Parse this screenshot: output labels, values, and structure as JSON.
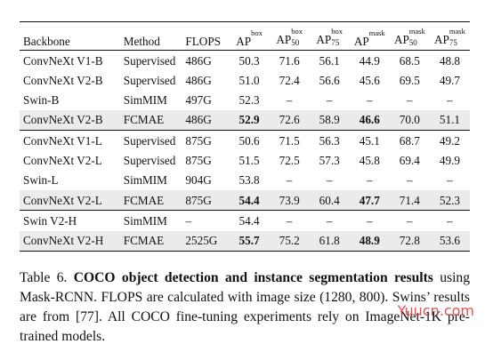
{
  "table": {
    "headers": {
      "backbone": "Backbone",
      "method": "Method",
      "flops": "FLOPS",
      "ap_box": {
        "base": "AP",
        "sup": "box",
        "sub": ""
      },
      "ap_box_50": {
        "base": "AP",
        "sup": "box",
        "sub": "50"
      },
      "ap_box_75": {
        "base": "AP",
        "sup": "box",
        "sub": "75"
      },
      "ap_mask": {
        "base": "AP",
        "sup": "mask",
        "sub": ""
      },
      "ap_mask_50": {
        "base": "AP",
        "sup": "mask",
        "sub": "50"
      },
      "ap_mask_75": {
        "base": "AP",
        "sup": "mask",
        "sub": "75"
      }
    },
    "rows": [
      {
        "backbone": "ConvNeXt V1-B",
        "method": "Supervised",
        "flops": "486G",
        "ap_box": "50.3",
        "ap_box_50": "71.6",
        "ap_box_75": "56.1",
        "ap_mask": "44.9",
        "ap_mask_50": "68.5",
        "ap_mask_75": "48.8"
      },
      {
        "backbone": "ConvNeXt V2-B",
        "method": "Supervised",
        "flops": "486G",
        "ap_box": "51.0",
        "ap_box_50": "72.4",
        "ap_box_75": "56.6",
        "ap_mask": "45.6",
        "ap_mask_50": "69.5",
        "ap_mask_75": "49.7"
      },
      {
        "backbone": "Swin-B",
        "method": "SimMIM",
        "flops": "497G",
        "ap_box": "52.3",
        "ap_box_50": "–",
        "ap_box_75": "–",
        "ap_mask": "–",
        "ap_mask_50": "–",
        "ap_mask_75": "–"
      },
      {
        "backbone": "ConvNeXt V2-B",
        "method": "FCMAE",
        "flops": "486G",
        "ap_box": "52.9",
        "ap_box_50": "72.6",
        "ap_box_75": "58.9",
        "ap_mask": "46.6",
        "ap_mask_50": "70.0",
        "ap_mask_75": "51.1"
      },
      {
        "backbone": "ConvNeXt V1-L",
        "method": "Supervised",
        "flops": "875G",
        "ap_box": "50.6",
        "ap_box_50": "71.5",
        "ap_box_75": "56.3",
        "ap_mask": "45.1",
        "ap_mask_50": "68.7",
        "ap_mask_75": "49.2"
      },
      {
        "backbone": "ConvNeXt V2-L",
        "method": "Supervised",
        "flops": "875G",
        "ap_box": "51.5",
        "ap_box_50": "72.5",
        "ap_box_75": "57.3",
        "ap_mask": "45.8",
        "ap_mask_50": "69.4",
        "ap_mask_75": "49.9"
      },
      {
        "backbone": "Swin-L",
        "method": "SimMIM",
        "flops": "904G",
        "ap_box": "53.8",
        "ap_box_50": "–",
        "ap_box_75": "–",
        "ap_mask": "–",
        "ap_mask_50": "–",
        "ap_mask_75": "–"
      },
      {
        "backbone": "ConvNeXt V2-L",
        "method": "FCMAE",
        "flops": "875G",
        "ap_box": "54.4",
        "ap_box_50": "73.9",
        "ap_box_75": "60.4",
        "ap_mask": "47.7",
        "ap_mask_50": "71.4",
        "ap_mask_75": "52.3"
      },
      {
        "backbone": "Swin V2-H",
        "method": "SimMIM",
        "flops": "–",
        "ap_box": "54.4",
        "ap_box_50": "–",
        "ap_box_75": "–",
        "ap_mask": "–",
        "ap_mask_50": "–",
        "ap_mask_75": "–"
      },
      {
        "backbone": "ConvNeXt V2-H",
        "method": "FCMAE",
        "flops": "2525G",
        "ap_box": "55.7",
        "ap_box_50": "75.2",
        "ap_box_75": "61.8",
        "ap_mask": "48.9",
        "ap_mask_50": "72.8",
        "ap_mask_75": "53.6"
      }
    ],
    "highlight_color": "#ebebeb"
  },
  "caption": {
    "label": "Table 6.",
    "bold_title_1": "COCO object detection and instance segmentation",
    "bold_title_2": "results",
    "text_1": "using Mask-RCNN. FLOPS are calculated with image size (1280, 800). Swins’ results are from",
    "ref": "[77]",
    "text_2": ". All COCO fine-tuning experiments rely on ImageNet-1K pre-trained models."
  },
  "watermark": {
    "text": "Yuucn.com",
    "color": "#e03434"
  }
}
